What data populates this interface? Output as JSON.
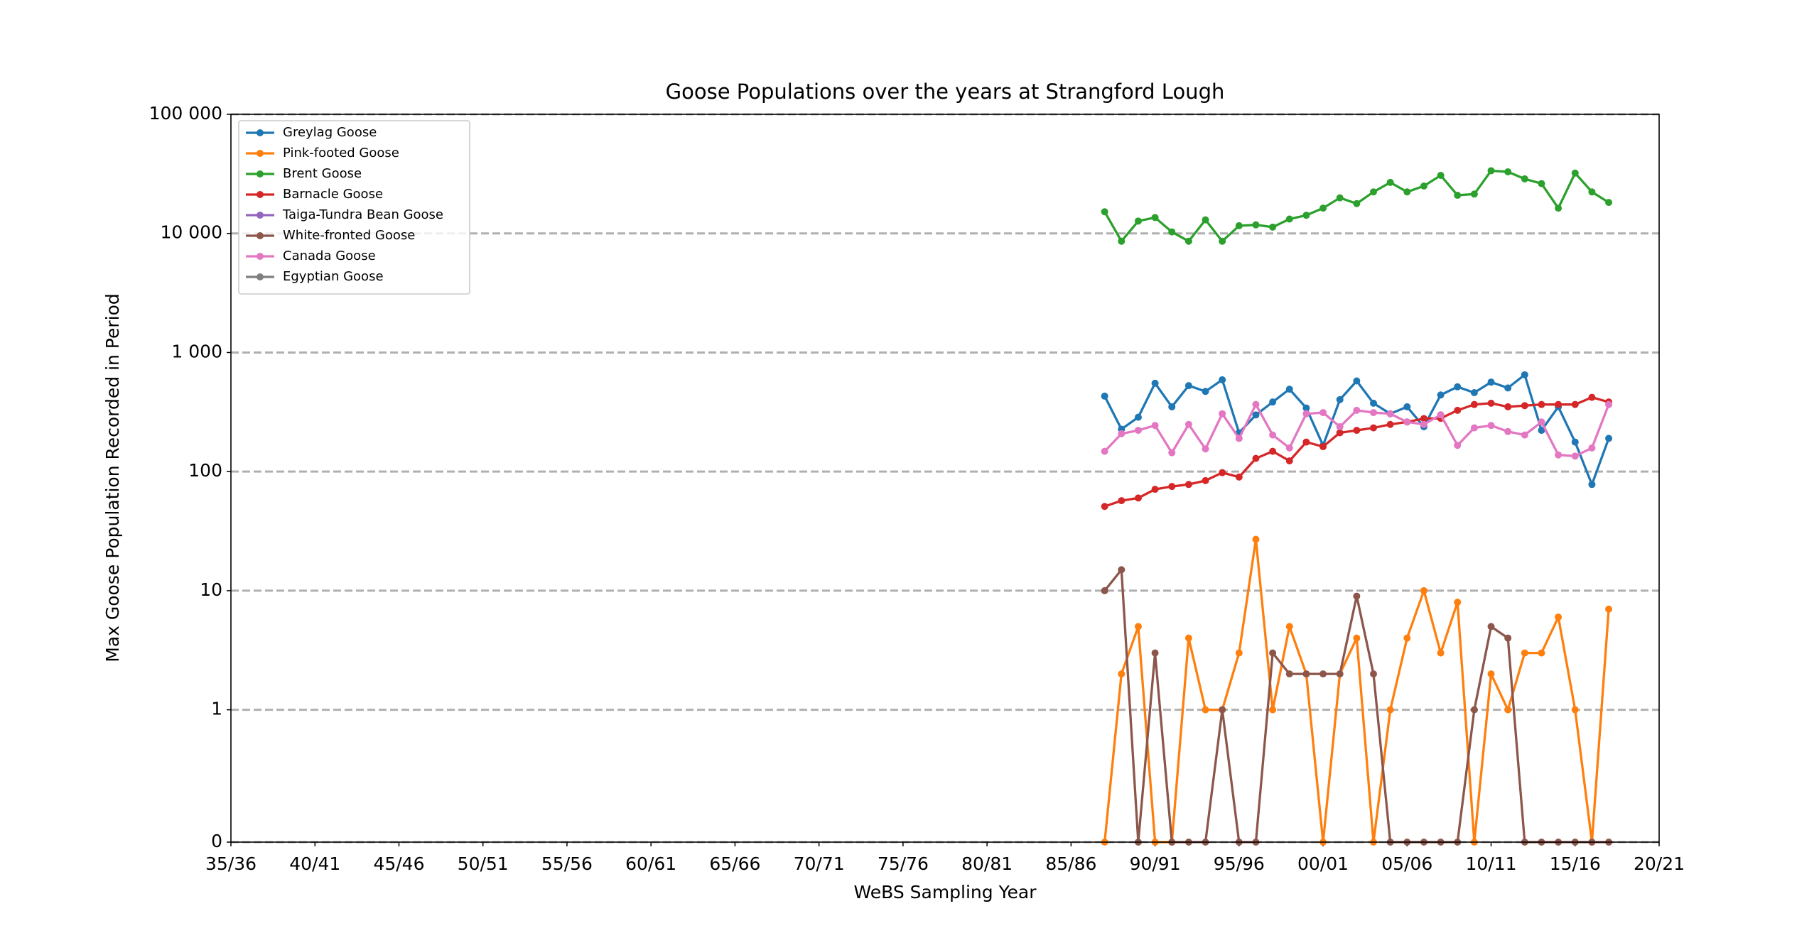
{
  "chart_data": {
    "type": "line",
    "title": "Goose Populations over the years at Strangford Lough",
    "xlabel": "WeBS Sampling Year",
    "ylabel": "Max Goose Population Recorded in Period",
    "yscale": "symlog",
    "linthresh": 1,
    "grid": true,
    "legend": "upper left",
    "x": [
      1987,
      1988,
      1989,
      1990,
      1991,
      1992,
      1993,
      1994,
      1995,
      1996,
      1997,
      1998,
      1999,
      2000,
      2001,
      2002,
      2003,
      2004,
      2005,
      2006,
      2007,
      2008,
      2009,
      2010,
      2011,
      2012,
      2013,
      2014,
      2015,
      2016,
      2017
    ],
    "xlim": [
      1935,
      2020
    ],
    "xticks": [
      {
        "value": 1935,
        "label": "35/36"
      },
      {
        "value": 1940,
        "label": "40/41"
      },
      {
        "value": 1945,
        "label": "45/46"
      },
      {
        "value": 1950,
        "label": "50/51"
      },
      {
        "value": 1955,
        "label": "55/56"
      },
      {
        "value": 1960,
        "label": "60/61"
      },
      {
        "value": 1965,
        "label": "65/66"
      },
      {
        "value": 1970,
        "label": "70/71"
      },
      {
        "value": 1975,
        "label": "75/76"
      },
      {
        "value": 1980,
        "label": "80/81"
      },
      {
        "value": 1985,
        "label": "85/86"
      },
      {
        "value": 1990,
        "label": "90/91"
      },
      {
        "value": 1995,
        "label": "95/96"
      },
      {
        "value": 2000,
        "label": "00/01"
      },
      {
        "value": 2005,
        "label": "05/06"
      },
      {
        "value": 2010,
        "label": "10/11"
      },
      {
        "value": 2015,
        "label": "15/16"
      },
      {
        "value": 2020,
        "label": "20/21"
      }
    ],
    "ylim": [
      0,
      100000
    ],
    "yticks": [
      0,
      1,
      10,
      100,
      {
        "value": 1000,
        "label": "1 000"
      },
      {
        "value": 10000,
        "label": "10 000"
      },
      {
        "value": 100000,
        "label": "100 000"
      }
    ],
    "series": [
      {
        "name": "Greylag Goose",
        "color": "#1f77b4",
        "values": [
          430,
          227,
          286,
          552,
          350,
          527,
          471,
          590,
          212,
          299,
          384,
          492,
          342,
          166,
          402,
          577,
          375,
          306,
          350,
          238,
          440,
          515,
          460,
          564,
          504,
          650,
          222,
          350,
          177,
          78,
          190
        ]
      },
      {
        "name": "Pink-footed Goose",
        "color": "#ff7f0e",
        "values": [
          0,
          2,
          5,
          0,
          0,
          4,
          1,
          1,
          3,
          27,
          1,
          5,
          2,
          0,
          2,
          4,
          0,
          1,
          4,
          10,
          3,
          8,
          0,
          2,
          1,
          3,
          3,
          6,
          1,
          0,
          7
        ]
      },
      {
        "name": "Brent Goose",
        "color": "#2ca02c",
        "values": [
          15200,
          8600,
          12700,
          13600,
          10300,
          8600,
          13000,
          8600,
          11600,
          11800,
          11300,
          13200,
          14200,
          16300,
          19900,
          17800,
          22300,
          26800,
          22300,
          25000,
          30700,
          20900,
          21400,
          33600,
          32900,
          28700,
          26200,
          16300,
          32100,
          22300,
          18200
        ]
      },
      {
        "name": "Barnacle Goose",
        "color": "#d62728",
        "values": [
          51,
          57,
          60,
          71,
          75,
          78,
          84,
          98,
          90,
          129,
          148,
          123,
          177,
          162,
          212,
          222,
          233,
          249,
          261,
          279,
          280,
          327,
          366,
          375,
          350,
          358,
          366,
          366,
          366,
          420,
          384
        ]
      },
      {
        "name": "Taiga-Tundra Bean Goose",
        "color": "#9467bd",
        "values": [
          null,
          null,
          null,
          null,
          null,
          null,
          null,
          null,
          null,
          null,
          null,
          null,
          null,
          null,
          null,
          null,
          null,
          null,
          null,
          null,
          null,
          null,
          null,
          null,
          null,
          null,
          null,
          null,
          null,
          null,
          null
        ]
      },
      {
        "name": "White-fronted Goose",
        "color": "#8c564b",
        "values": [
          10,
          15,
          0,
          3,
          0,
          0,
          0,
          1,
          0,
          0,
          3,
          2,
          2,
          2,
          2,
          9,
          2,
          0,
          0,
          0,
          0,
          0,
          1,
          5,
          4,
          0,
          0,
          0,
          0,
          0,
          0
        ]
      },
      {
        "name": "Canada Goose",
        "color": "#e377c2",
        "values": [
          148,
          208,
          222,
          244,
          144,
          249,
          155,
          306,
          190,
          366,
          203,
          158,
          306,
          313,
          238,
          327,
          313,
          306,
          261,
          249,
          300,
          166,
          233,
          244,
          217,
          203,
          261,
          138,
          135,
          158,
          366
        ]
      },
      {
        "name": "Egyptian Goose",
        "color": "#7f7f7f",
        "values": [
          null,
          null,
          null,
          null,
          null,
          null,
          null,
          null,
          null,
          null,
          null,
          null,
          null,
          null,
          null,
          null,
          null,
          null,
          null,
          null,
          null,
          null,
          null,
          null,
          null,
          null,
          null,
          null,
          null,
          null,
          null
        ]
      }
    ]
  }
}
